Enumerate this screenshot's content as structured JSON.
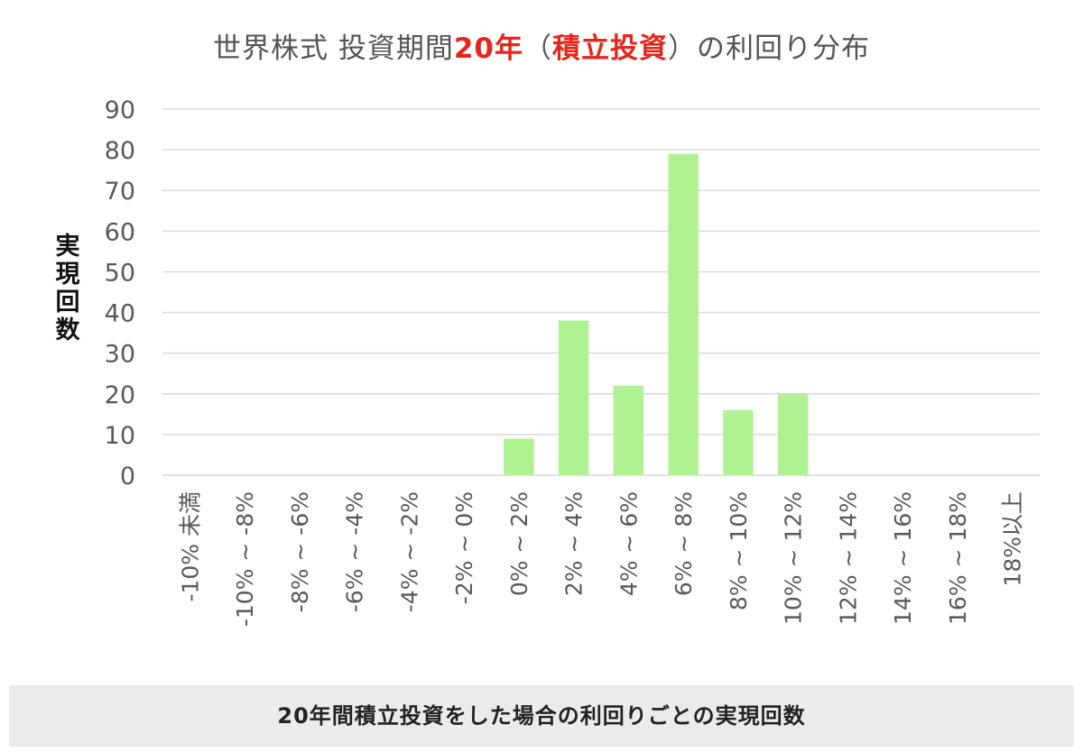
{
  "chart_data": {
    "type": "bar",
    "title_parts": [
      {
        "text": "世界株式  投資期間",
        "highlight": false
      },
      {
        "text": "20年",
        "highlight": true
      },
      {
        "text": "（",
        "highlight": false
      },
      {
        "text": "積立投資",
        "highlight": true
      },
      {
        "text": "）の利回り分布",
        "highlight": false
      }
    ],
    "ylabel_chars": [
      "実",
      "現",
      "回",
      "数"
    ],
    "categories": [
      "-10% 未満",
      "-10% ~ -8%",
      "-8% ~ -6%",
      "-6% ~ -4%",
      "-4% ~ -2%",
      "-2% ~ 0%",
      "0% ~ 2%",
      "2% ~ 4%",
      "4% ~ 6%",
      "6% ~ 8%",
      "8% ~ 10%",
      "10% ~ 12%",
      "12% ~ 14%",
      "14% ~ 16%",
      "16% ~ 18%",
      "18%以上"
    ],
    "values": [
      0,
      0,
      0,
      0,
      0,
      0,
      9,
      38,
      22,
      79,
      16,
      20,
      0,
      0,
      0,
      0
    ],
    "ylim": [
      0,
      90
    ],
    "yticks": [
      0,
      10,
      20,
      30,
      40,
      50,
      60,
      70,
      80,
      90
    ],
    "grid": true,
    "bar_color": "#aef291",
    "highlight_color": "#e8251c"
  },
  "caption": "20年間積立投資をした場合の利回りごとの実現回数"
}
